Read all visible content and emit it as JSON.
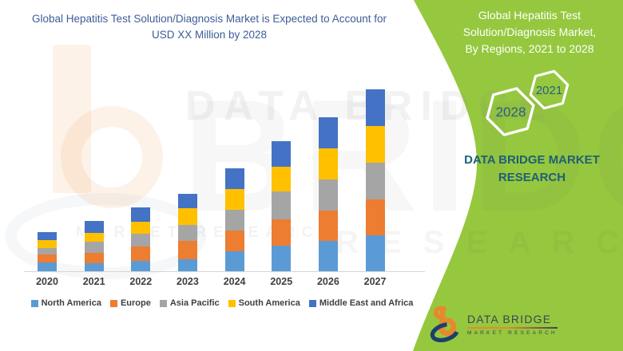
{
  "left_panel": {
    "title_line1": "Global Hepatitis Test Solution/Diagnosis Market is Expected to",
    "title_line2": "Account for USD XX Million by 2028"
  },
  "green_panel": {
    "color": "#95c83e",
    "title_line1": "Global Hepatitis Test",
    "title_line2": "Solution/Diagnosis Market,",
    "title_line3": "By Regions, 2021 to 2028",
    "hexagon_left_label": "2028",
    "hexagon_right_label": "2021",
    "brand_line1": "DATA BRIDGE MARKET",
    "brand_line2": "RESEARCH",
    "brand_text_color": "#1e6078",
    "hexagon_text_color": "#2b5f82"
  },
  "logo": {
    "brand": "DATA BRIDGE",
    "tagline": "MARKET RESEARCH"
  },
  "watermark": {
    "top_text": "DATA BRIDGE",
    "mid_text": "MARKET RESEARCH",
    "giant_text": "BRIDGE",
    "research_text": "R E S E A R C H"
  },
  "chart_data": {
    "type": "bar",
    "stacked": true,
    "title": "Global Hepatitis Test Solution/Diagnosis Market is Expected to Account for USD XX Million by 2028",
    "xlabel": "",
    "ylabel": "",
    "units": "USD Million (values shown as XX, not labeled on chart)",
    "value_axis_visible": false,
    "grid": false,
    "legend_position": "bottom",
    "categories": [
      "2020",
      "2021",
      "2022",
      "2023",
      "2024",
      "2025",
      "2026",
      "2027"
    ],
    "series": [
      {
        "name": "North America",
        "color": "#5B9BD5",
        "values": [
          11,
          10,
          13,
          15,
          25,
          32,
          38,
          45
        ]
      },
      {
        "name": "Europe",
        "color": "#ED7D31",
        "values": [
          10,
          13,
          18,
          23,
          26,
          33,
          38,
          45
        ]
      },
      {
        "name": "Asia Pacific",
        "color": "#A5A5A5",
        "values": [
          8,
          14,
          16,
          20,
          26,
          35,
          39,
          46
        ]
      },
      {
        "name": "South America",
        "color": "#FFC000",
        "values": [
          10,
          11,
          15,
          21,
          26,
          31,
          39,
          46
        ]
      },
      {
        "name": "Middle East and Africa",
        "color": "#4472C4",
        "values": [
          10,
          15,
          18,
          18,
          26,
          32,
          39,
          46
        ]
      }
    ],
    "totals_estimated": [
      49,
      63,
      80,
      97,
      129,
      163,
      193,
      228
    ],
    "note": "Stacked totals rise steadily from 2020 to 2027; numeric values are relative estimates since the chart labels values as USD XX Million."
  }
}
